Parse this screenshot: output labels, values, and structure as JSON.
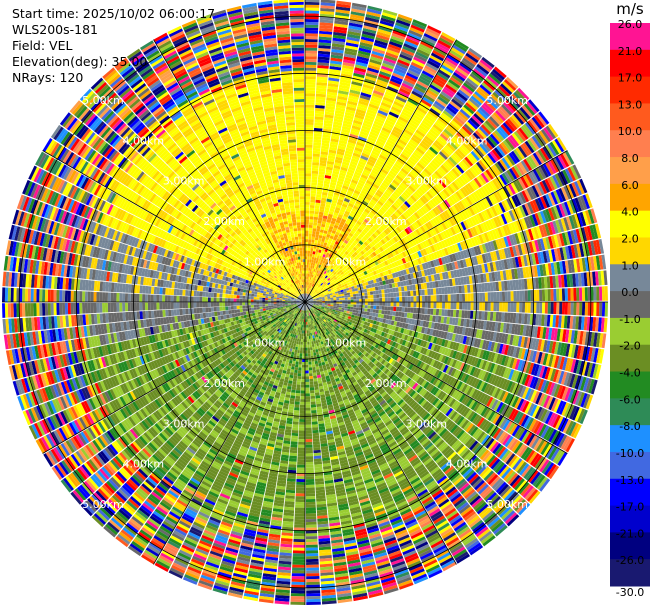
{
  "header": {
    "start_time": "Start time: 2025/10/02 06:00:17",
    "instrument": "WLS200s-181",
    "field": "Field: VEL",
    "elevation": "Elevation(deg): 35.00",
    "nrays": "NRays: 120"
  },
  "colorbar": {
    "unit": "m/s",
    "entries": [
      {
        "label": "26.0",
        "color": "#ff1493"
      },
      {
        "label": "21.0",
        "color": "#ff0000"
      },
      {
        "label": "17.0",
        "color": "#ff2a00"
      },
      {
        "label": "13.0",
        "color": "#ff5a1e"
      },
      {
        "label": "10.0",
        "color": "#ff7f4f"
      },
      {
        "label": "8.0",
        "color": "#ff9f4a"
      },
      {
        "label": "6.0",
        "color": "#ffa500"
      },
      {
        "label": "4.0",
        "color": "#ffff00"
      },
      {
        "label": "2.0",
        "color": "#ffd700"
      },
      {
        "label": "1.0",
        "color": "#778899"
      },
      {
        "label": "0.0",
        "color": "#696969"
      },
      {
        "label": "-1.0",
        "color": "#9acd32"
      },
      {
        "label": "-2.0",
        "color": "#6b8e23"
      },
      {
        "label": "-4.0",
        "color": "#228b22"
      },
      {
        "label": "-6.0",
        "color": "#2e8b57"
      },
      {
        "label": "-8.0",
        "color": "#1e90ff"
      },
      {
        "label": "-10.0",
        "color": "#4169e1"
      },
      {
        "label": "-13.0",
        "color": "#0000ff"
      },
      {
        "label": "-17.0",
        "color": "#0000cd"
      },
      {
        "label": "-21.0",
        "color": "#000080"
      },
      {
        "label": "-26.0",
        "color": "#191970"
      }
    ],
    "bottom_label": "-30.0"
  },
  "chart_data": {
    "type": "heatmap",
    "projection": "polar-ppi",
    "field": "VEL",
    "units": "m/s",
    "n_rays": 120,
    "elevation_deg": 35.0,
    "max_range_km": 5.3,
    "range_rings_km": [
      1.0,
      2.0,
      3.0,
      4.0,
      5.0
    ],
    "ring_labels": {
      "1": "1.00km",
      "2": "2.00km",
      "3": "3.00km",
      "4": "4.00km",
      "5": "5.00km"
    },
    "radial_lines_deg": [
      0,
      30,
      60,
      90,
      120,
      150,
      180,
      210,
      240,
      270,
      300,
      330
    ],
    "pattern": {
      "north_sector": "yellow (2-6 m/s), orange near center",
      "south_sector": "olive/yellow-green (-1 to -4 m/s)",
      "east_west_edges": "grey (0-1 m/s)",
      "outer_ring_beyond_4km": "noisy multicolor"
    }
  }
}
